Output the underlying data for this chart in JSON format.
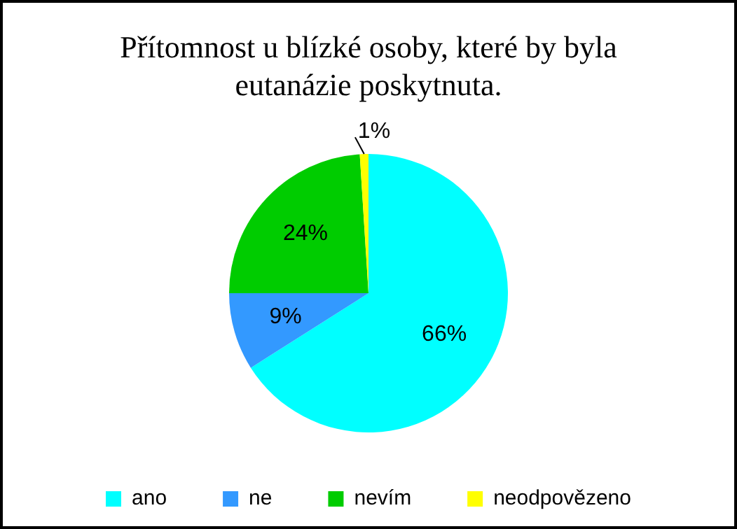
{
  "chart_data": {
    "type": "pie",
    "title": "Přítomnost u blízké osoby, které by byla eutanázie poskytnuta.",
    "categories": [
      "ano",
      "ne",
      "nevím",
      "neodpovězeno"
    ],
    "values": [
      66,
      9,
      24,
      1
    ],
    "colors": [
      "#00ffff",
      "#3399ff",
      "#00cc00",
      "#ffff00"
    ],
    "value_labels": [
      "66%",
      "9%",
      "24%",
      "1%"
    ],
    "legend": "bottom"
  }
}
